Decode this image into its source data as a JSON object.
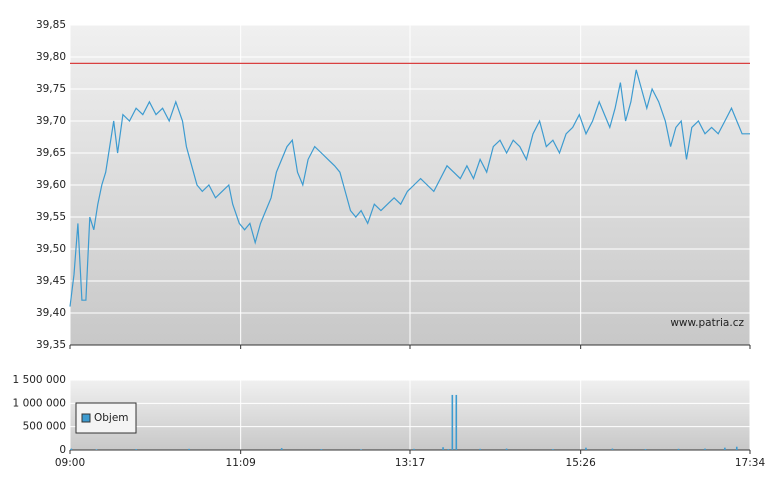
{
  "chart_data": [
    {
      "type": "line",
      "x": [
        540,
        543,
        546,
        549,
        552,
        555,
        558,
        561,
        564,
        567,
        570,
        573,
        576,
        580,
        585,
        590,
        595,
        600,
        605,
        610,
        615,
        620,
        625,
        628,
        632,
        636,
        640,
        645,
        650,
        655,
        660,
        663,
        668,
        672,
        676,
        680,
        684,
        688,
        692,
        696,
        700,
        704,
        708,
        712,
        716,
        720,
        725,
        730,
        735,
        740,
        744,
        748,
        752,
        756,
        760,
        765,
        770,
        775,
        780,
        785,
        790,
        795,
        800,
        805,
        810,
        815,
        820,
        825,
        830,
        835,
        840,
        845,
        850,
        855,
        860,
        865,
        870,
        875,
        880,
        885,
        890,
        895,
        900,
        905,
        910,
        915,
        920,
        925,
        930,
        935,
        940,
        944,
        948,
        952,
        956,
        960,
        964,
        968,
        972,
        976,
        980,
        985,
        990,
        994,
        998,
        1002,
        1006,
        1010,
        1015,
        1020,
        1025,
        1030,
        1035,
        1040,
        1044,
        1048,
        1054
      ],
      "series": [
        {
          "color": "#3d9bd0",
          "values": [
            39.41,
            39.46,
            39.54,
            39.42,
            39.42,
            39.55,
            39.53,
            39.57,
            39.6,
            39.62,
            39.66,
            39.7,
            39.65,
            39.71,
            39.7,
            39.72,
            39.71,
            39.73,
            39.71,
            39.72,
            39.7,
            39.73,
            39.7,
            39.66,
            39.63,
            39.6,
            39.59,
            39.6,
            39.58,
            39.59,
            39.6,
            39.57,
            39.54,
            39.53,
            39.54,
            39.51,
            39.54,
            39.56,
            39.58,
            39.62,
            39.64,
            39.66,
            39.67,
            39.62,
            39.6,
            39.64,
            39.66,
            39.65,
            39.64,
            39.63,
            39.62,
            39.59,
            39.56,
            39.55,
            39.56,
            39.54,
            39.57,
            39.56,
            39.57,
            39.58,
            39.57,
            39.59,
            39.6,
            39.61,
            39.6,
            39.59,
            39.61,
            39.63,
            39.62,
            39.61,
            39.63,
            39.61,
            39.64,
            39.62,
            39.66,
            39.67,
            39.65,
            39.67,
            39.66,
            39.64,
            39.68,
            39.7,
            39.66,
            39.67,
            39.65,
            39.68,
            39.69,
            39.71,
            39.68,
            39.7,
            39.73,
            39.71,
            39.69,
            39.72,
            39.76,
            39.7,
            39.73,
            39.78,
            39.75,
            39.72,
            39.75,
            39.73,
            39.7,
            39.66,
            39.69,
            39.7,
            39.64,
            39.69,
            39.7,
            39.68,
            39.69,
            39.68,
            39.7,
            39.72,
            39.7,
            39.68,
            39.68
          ]
        }
      ],
      "reference_line": {
        "value": 39.79,
        "color": "#d94040"
      },
      "xlim": [
        540,
        1054
      ],
      "xticks": [
        540,
        669,
        797,
        926,
        1054
      ],
      "ylim": [
        39.35,
        39.85
      ],
      "yticks": [
        {
          "value": 39.35,
          "label": "39,35"
        },
        {
          "value": 39.4,
          "label": "39,40"
        },
        {
          "value": 39.45,
          "label": "39,45"
        },
        {
          "value": 39.5,
          "label": "39,50"
        },
        {
          "value": 39.55,
          "label": "39,55"
        },
        {
          "value": 39.6,
          "label": "39,60"
        },
        {
          "value": 39.65,
          "label": "39,65"
        },
        {
          "value": 39.7,
          "label": "39,70"
        },
        {
          "value": 39.75,
          "label": "39,75"
        },
        {
          "value": 39.8,
          "label": "39,80"
        },
        {
          "value": 39.85,
          "label": "39,85"
        }
      ],
      "annotation": "www.patria.cz",
      "grid": true
    },
    {
      "type": "bar",
      "x": [
        541,
        560,
        590,
        630,
        700,
        730,
        760,
        800,
        822,
        826,
        829,
        832,
        850,
        870,
        905,
        930,
        950,
        975,
        1000,
        1020,
        1035,
        1044
      ],
      "series": [
        {
          "name": "Objem",
          "color": "#3d9bd0",
          "values": [
            30000,
            15000,
            20000,
            25000,
            40000,
            20000,
            15000,
            25000,
            60000,
            20000,
            1180000,
            1180000,
            25000,
            30000,
            20000,
            50000,
            30000,
            20000,
            25000,
            30000,
            50000,
            70000
          ]
        }
      ],
      "xlim": [
        540,
        1054
      ],
      "xticks": [
        {
          "value": 540,
          "label": "09:00"
        },
        {
          "value": 669,
          "label": "11:09"
        },
        {
          "value": 797,
          "label": "13:17"
        },
        {
          "value": 926,
          "label": "15:26"
        },
        {
          "value": 1054,
          "label": "17:34"
        }
      ],
      "ylim": [
        0,
        1500000
      ],
      "yticks": [
        0,
        {
          "value": 500000,
          "label": "500 000"
        },
        {
          "value": 1000000,
          "label": "1 000 000"
        },
        {
          "value": 1500000,
          "label": "1 500 000"
        }
      ],
      "legend": "upper left",
      "grid": true
    }
  ]
}
